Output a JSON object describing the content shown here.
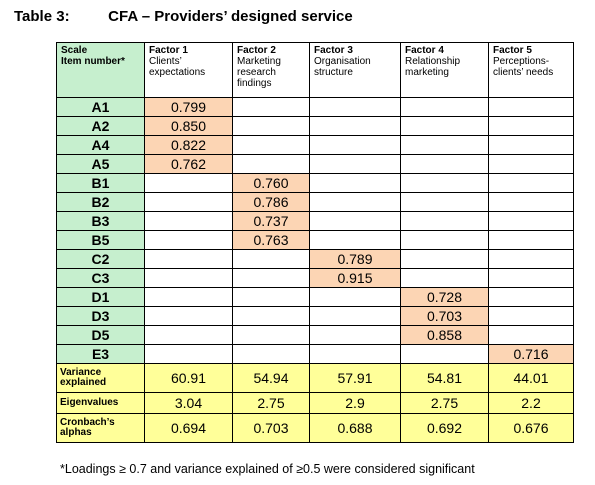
{
  "title": {
    "number": "Table 3:",
    "text": "CFA – Providers’ designed service"
  },
  "header": {
    "scale": "Scale",
    "item_number": "Item number*",
    "factors": [
      {
        "name": "Factor 1",
        "desc": "Clients’ expectations"
      },
      {
        "name": "Factor 2",
        "desc": "Marketing research findings"
      },
      {
        "name": "Factor 3",
        "desc": "Organisation structure"
      },
      {
        "name": "Factor 4",
        "desc": "Relationship marketing"
      },
      {
        "name": "Factor 5",
        "desc": "Perceptions-clients’ needs"
      }
    ]
  },
  "rows": [
    {
      "item": "A1",
      "factor": 0,
      "value": "0.799"
    },
    {
      "item": "A2",
      "factor": 0,
      "value": "0.850"
    },
    {
      "item": "A4",
      "factor": 0,
      "value": "0.822"
    },
    {
      "item": "A5",
      "factor": 0,
      "value": "0.762"
    },
    {
      "item": "B1",
      "factor": 1,
      "value": "0.760"
    },
    {
      "item": "B2",
      "factor": 1,
      "value": "0.786"
    },
    {
      "item": "B3",
      "factor": 1,
      "value": "0.737"
    },
    {
      "item": "B5",
      "factor": 1,
      "value": "0.763"
    },
    {
      "item": "C2",
      "factor": 2,
      "value": "0.789"
    },
    {
      "item": "C3",
      "factor": 2,
      "value": "0.915"
    },
    {
      "item": "D1",
      "factor": 3,
      "value": "0.728"
    },
    {
      "item": "D3",
      "factor": 3,
      "value": "0.703"
    },
    {
      "item": "D5",
      "factor": 3,
      "value": "0.858"
    },
    {
      "item": "E3",
      "factor": 4,
      "value": "0.716"
    }
  ],
  "stats": [
    {
      "label": "Variance explained",
      "values": [
        "60.91",
        "54.94",
        "57.91",
        "54.81",
        "44.01"
      ]
    },
    {
      "label": "Eigenvalues",
      "values": [
        "3.04",
        "2.75",
        "2.9",
        "2.75",
        "2.2"
      ]
    },
    {
      "label": "Cronbach’s alphas",
      "values": [
        "0.694",
        "0.703",
        "0.688",
        "0.692",
        "0.676"
      ]
    }
  ],
  "footnote": "*Loadings ≥ 0.7 and variance explained of ≥0.5 were considered significant",
  "colors": {
    "item_bg": "#c6efce",
    "loading_bg": "#fcd5b4",
    "stats_bg": "#ffff99"
  }
}
